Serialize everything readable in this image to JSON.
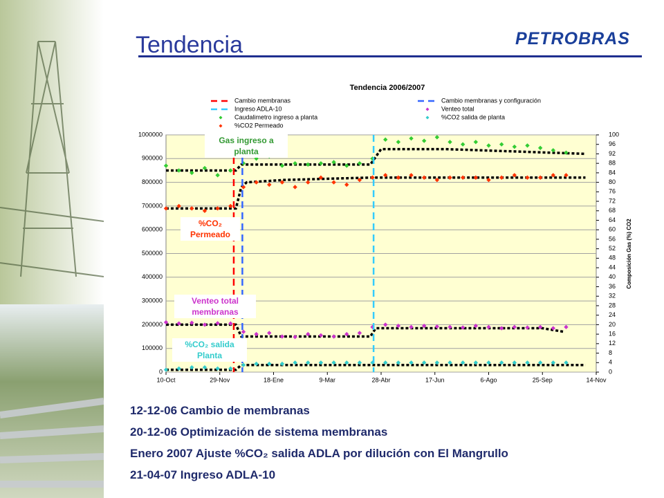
{
  "header": {
    "title": "Tendencia",
    "logo": "PETROBRAS"
  },
  "chart_data": {
    "type": "scatter",
    "title": "Tendencia 2006/2007",
    "y2_label": "Composición Gas (%) CO2",
    "xlim": [
      0,
      400
    ],
    "xticks": [
      {
        "value": 0,
        "label": "10-Oct"
      },
      {
        "value": 50,
        "label": "29-Nov"
      },
      {
        "value": 100,
        "label": "18-Ene"
      },
      {
        "value": 150,
        "label": "9-Mar"
      },
      {
        "value": 200,
        "label": "28-Abr"
      },
      {
        "value": 250,
        "label": "17-Jun"
      },
      {
        "value": 300,
        "label": "6-Ago"
      },
      {
        "value": 350,
        "label": "25-Sep"
      },
      {
        "value": 400,
        "label": "14-Nov"
      }
    ],
    "ylim": [
      0,
      1000000
    ],
    "yticks": [
      0,
      100000,
      200000,
      300000,
      400000,
      500000,
      600000,
      700000,
      800000,
      900000,
      1000000
    ],
    "y2lim": [
      0,
      100
    ],
    "y2ticks": [
      0,
      4,
      8,
      12,
      16,
      20,
      24,
      28,
      32,
      36,
      40,
      44,
      48,
      52,
      56,
      60,
      64,
      68,
      72,
      76,
      80,
      84,
      88,
      92,
      96,
      100
    ],
    "grid": true,
    "vlines": [
      {
        "name": "Cambio membranas",
        "color": "#ff0000",
        "x": 63
      },
      {
        "name": "Cambio membranas y configuración",
        "color": "#3366ff",
        "x": 71
      },
      {
        "name": "Ingreso ADLA-10",
        "color": "#33ccff",
        "x": 193
      }
    ],
    "series": [
      {
        "name": "Venteo total",
        "color": "#cc33cc",
        "axis": "y",
        "x": [
          0,
          12,
          24,
          36,
          48,
          60,
          72,
          84,
          96,
          108,
          120,
          132,
          144,
          156,
          168,
          180,
          192,
          204,
          216,
          228,
          240,
          252,
          264,
          276,
          288,
          300,
          312,
          324,
          336,
          348,
          360,
          372
        ],
        "values": [
          210000,
          205000,
          208000,
          200000,
          206000,
          205000,
          170000,
          160000,
          165000,
          150000,
          148000,
          160000,
          155000,
          150000,
          160000,
          165000,
          190000,
          200000,
          195000,
          190000,
          195000,
          192000,
          190000,
          188000,
          195000,
          190000,
          185000,
          190000,
          188000,
          190000,
          185000,
          190000
        ]
      },
      {
        "name": "Caudalimetro ingreso a planta",
        "color": "#33cc33",
        "axis": "y",
        "x": [
          0,
          12,
          24,
          36,
          48,
          60,
          72,
          84,
          96,
          108,
          120,
          132,
          144,
          156,
          168,
          180,
          192,
          204,
          216,
          228,
          240,
          252,
          264,
          276,
          288,
          300,
          312,
          324,
          336,
          348,
          360,
          372
        ],
        "values": [
          870000,
          850000,
          840000,
          860000,
          830000,
          850000,
          880000,
          900000,
          910000,
          870000,
          880000,
          875000,
          880000,
          885000,
          870000,
          880000,
          900000,
          980000,
          970000,
          985000,
          975000,
          990000,
          970000,
          960000,
          970000,
          955000,
          960000,
          950000,
          955000,
          945000,
          935000,
          925000
        ]
      },
      {
        "name": "%CO2 Permeado",
        "color": "#ff3300",
        "axis": "y2",
        "x": [
          0,
          12,
          24,
          36,
          48,
          60,
          72,
          84,
          96,
          108,
          120,
          132,
          144,
          156,
          168,
          180,
          192,
          204,
          216,
          228,
          240,
          252,
          264,
          276,
          288,
          300,
          312,
          324,
          336,
          348,
          360,
          372
        ],
        "values": [
          69,
          70,
          69,
          68,
          69,
          70,
          78,
          80,
          79,
          80,
          78,
          80,
          82,
          80,
          79,
          81,
          82,
          83,
          82,
          83,
          82,
          81,
          82,
          82,
          82,
          81,
          82,
          83,
          82,
          82,
          83,
          83
        ]
      },
      {
        "name": "%CO2 salida de planta",
        "color": "#33cccc",
        "axis": "y2",
        "x": [
          0,
          12,
          24,
          36,
          48,
          60,
          72,
          84,
          96,
          108,
          120,
          132,
          144,
          156,
          168,
          180,
          192,
          204,
          216,
          228,
          240,
          252,
          264,
          276,
          288,
          300,
          312,
          324,
          336,
          348,
          360,
          372
        ],
        "values": [
          1,
          1.5,
          2,
          2,
          1.5,
          1.5,
          3,
          3.5,
          3.5,
          3.5,
          4,
          4,
          4,
          4,
          4,
          4,
          4,
          4,
          4,
          4,
          4,
          4,
          4,
          4,
          4,
          4,
          4,
          4,
          4,
          4,
          4,
          4
        ]
      }
    ],
    "levels": [
      {
        "color": "#000000",
        "axis": "y",
        "x": [
          0,
          65,
          70,
          190,
          200,
          260,
          390
        ],
        "values": [
          850000,
          850000,
          875000,
          875000,
          940000,
          940000,
          920000
        ]
      },
      {
        "color": "#000000",
        "axis": "y2",
        "x": [
          0,
          65,
          70,
          75,
          110,
          190,
          390
        ],
        "values": [
          69,
          69,
          78,
          80,
          81,
          82,
          82
        ]
      },
      {
        "color": "#000000",
        "axis": "y",
        "x": [
          0,
          65,
          70,
          190,
          195,
          350,
          370
        ],
        "values": [
          200000,
          200000,
          150000,
          150000,
          185000,
          185000,
          170000
        ]
      },
      {
        "color": "#000000",
        "axis": "y2",
        "x": [
          0,
          65,
          70,
          390
        ],
        "values": [
          1,
          1,
          3,
          3
        ]
      }
    ],
    "annotations": [
      {
        "text": "Gas ingreso a planta",
        "color": "#339933"
      },
      {
        "text": "%CO₂ Permeado",
        "color": "#ff3300"
      },
      {
        "text": "Venteo total membranas",
        "color": "#cc33cc"
      },
      {
        "text": "%CO₂ salida Planta",
        "color": "#33cccc"
      }
    ]
  },
  "notes": [
    {
      "date": "12-12-06",
      "text": "Cambio de membranas"
    },
    {
      "date": "20-12-06",
      "text": "Optimización de sistema membranas"
    },
    {
      "date": "Enero 2007",
      "text": "Ajuste %CO₂ salida ADLA por dilución con El Mangrullo"
    },
    {
      "date": "21-04-07",
      "text": "Ingreso ADLA-10"
    }
  ]
}
